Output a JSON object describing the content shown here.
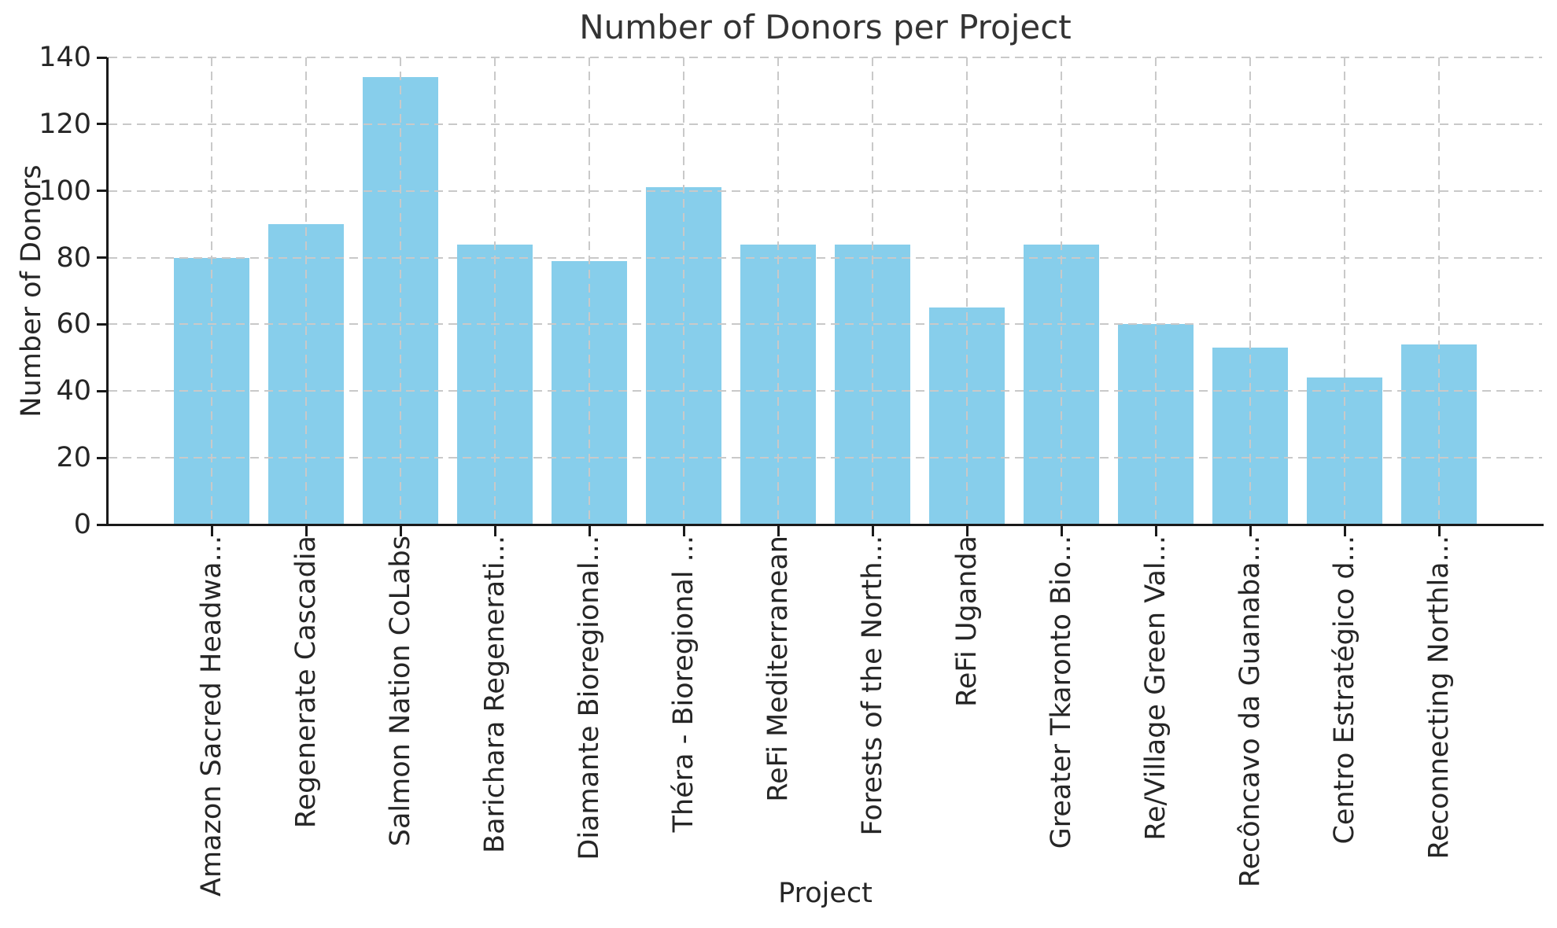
{
  "chart_data": {
    "type": "bar",
    "title": "Number of Donors per Project",
    "xlabel": "Project",
    "ylabel": "Number of Donors",
    "categories": [
      "Amazon Sacred Headwa...",
      "Regenerate Cascadia",
      "Salmon Nation CoLabs",
      "Barichara Regenerati...",
      "Diamante Bioregional...",
      "Théra - Bioregional ...",
      "ReFi Mediterranean",
      "Forests of the North...",
      "ReFi Uganda",
      "Greater Tkaronto Bio...",
      "Re/Village Green Val...",
      "Recôncavo da Guanaba...",
      "Centro Estratégico d...",
      "Reconnecting Northla..."
    ],
    "values": [
      80,
      90,
      134,
      84,
      79,
      101,
      84,
      84,
      65,
      84,
      60,
      53,
      44,
      54
    ],
    "ylim": [
      0,
      140
    ],
    "yticks": [
      "0",
      "20",
      "40",
      "60",
      "80",
      "100",
      "120",
      "140"
    ],
    "ytick_step": 20,
    "grid": "dashed",
    "grid_on_top": true,
    "legend": "none",
    "bar_color": "#87CEEB",
    "grid_color": "#c9c9c9",
    "axis_color": "#1a1a1a",
    "text_color": "#262626"
  }
}
